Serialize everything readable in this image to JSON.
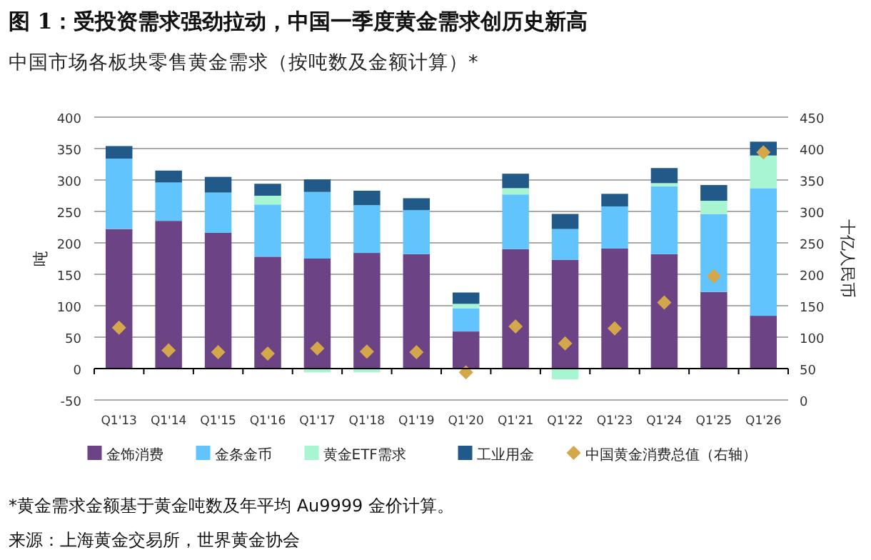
{
  "chart_data": {
    "type": "bar",
    "stacked": true,
    "title": "图 1：受投资需求强劲拉动，中国一季度黄金需求创历史新高",
    "subtitle": "中国市场各板块零售黄金需求（按吨数及金额计算）*",
    "ylabel": "吨",
    "y2label": "十亿人民币",
    "categories": [
      "Q1'13",
      "Q1'14",
      "Q1'15",
      "Q1'16",
      "Q1'17",
      "Q1'18",
      "Q1'19",
      "Q1'20",
      "Q1'21",
      "Q1'22",
      "Q1'23",
      "Q1'24",
      "Q1'25",
      "Q1'26"
    ],
    "series": [
      {
        "name": "金饰消费",
        "color": "#6c4384",
        "values": [
          222,
          235,
          216,
          178,
          175,
          184,
          182,
          59,
          190,
          173,
          191,
          182,
          122,
          84
        ]
      },
      {
        "name": "金条金币",
        "color": "#62c4fc",
        "values": [
          112,
          61,
          64,
          83,
          106,
          76,
          70,
          37,
          87,
          49,
          67,
          108,
          124,
          203
        ]
      },
      {
        "name": "黄金ETF需求",
        "color": "#a8f5d2",
        "values": [
          0,
          null,
          null,
          14,
          -6,
          -6,
          null,
          7,
          10,
          -17,
          null,
          5,
          21,
          52
        ]
      },
      {
        "name": "工业用金",
        "color": "#215a88",
        "values": [
          20,
          19,
          25,
          19,
          20,
          23,
          19,
          18,
          23,
          24,
          20,
          24,
          25,
          22
        ]
      },
      {
        "name": "中国黄金消费总值（右轴）",
        "color": "#d4a84a",
        "type": "scatter",
        "axis": "y2",
        "marker": "diamond",
        "values": [
          115,
          79,
          76,
          74,
          82,
          77,
          76,
          44,
          117,
          90,
          114,
          155,
          197,
          394
        ]
      }
    ],
    "ylim": [
      -50,
      400
    ],
    "yticks": [
      -50,
      0,
      50,
      100,
      150,
      200,
      250,
      300,
      350,
      400
    ],
    "y2lim": [
      0,
      450
    ],
    "y2ticks": [
      0,
      50,
      100,
      150,
      200,
      250,
      300,
      350,
      400,
      450
    ],
    "grid": "y",
    "legend": "bottom",
    "annotations": [
      "*黄金需求金额基于黄金吨数及年平均 Au9999 金价计算。",
      "来源：上海黄金交易所，世界黄金协会"
    ]
  }
}
